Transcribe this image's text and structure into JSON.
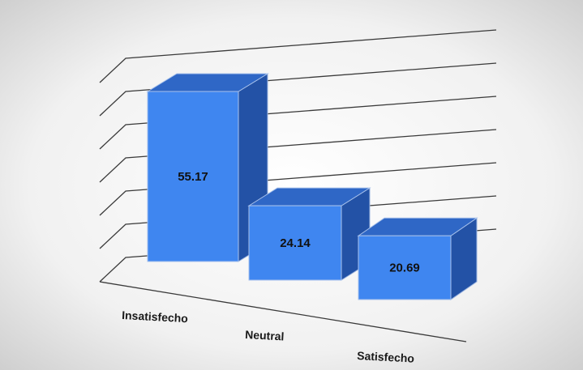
{
  "chart_data": {
    "type": "bar",
    "title": "",
    "xlabel": "",
    "ylabel": "",
    "categories": [
      "Insatisfecho",
      "Neutral",
      "Satisfecho"
    ],
    "values": [
      55.17,
      24.14,
      20.69
    ],
    "ylim": [
      0,
      60
    ],
    "grid": true,
    "legend": "none",
    "colors": {
      "front": "#3f86f0",
      "top": "#2f67c6",
      "side": "#2352a6",
      "background_center": "#ffffff",
      "background_edge": "#c9c9c9"
    }
  }
}
